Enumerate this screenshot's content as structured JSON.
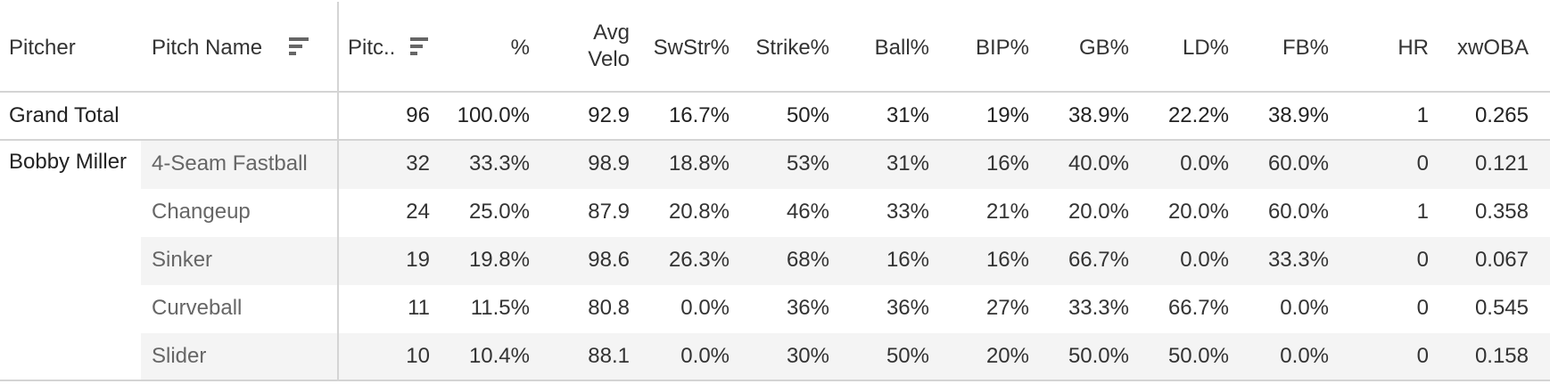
{
  "headers": {
    "pitcher": "Pitcher",
    "pitch_name": "Pitch Name",
    "pitches": "Pitc..",
    "pct": "%",
    "avg_velo_line1": "Avg",
    "avg_velo_line2": "Velo",
    "swstr": "SwStr%",
    "strike": "Strike%",
    "ball": "Ball%",
    "bip": "BIP%",
    "gb": "GB%",
    "ld": "LD%",
    "fb": "FB%",
    "hr": "HR",
    "xwoba": "xwOBA"
  },
  "total": {
    "label": "Grand Total",
    "values": [
      "96",
      "100.0%",
      "92.9",
      "16.7%",
      "50%",
      "31%",
      "19%",
      "38.9%",
      "22.2%",
      "38.9%",
      "1",
      "0.265"
    ]
  },
  "pitcher_name": "Bobby Miller",
  "rows": [
    {
      "pitch": "4-Seam Fastball",
      "values": [
        "32",
        "33.3%",
        "98.9",
        "18.8%",
        "53%",
        "31%",
        "16%",
        "40.0%",
        "0.0%",
        "60.0%",
        "0",
        "0.121"
      ]
    },
    {
      "pitch": "Changeup",
      "values": [
        "24",
        "25.0%",
        "87.9",
        "20.8%",
        "46%",
        "33%",
        "21%",
        "20.0%",
        "20.0%",
        "60.0%",
        "1",
        "0.358"
      ]
    },
    {
      "pitch": "Sinker",
      "values": [
        "19",
        "19.8%",
        "98.6",
        "26.3%",
        "68%",
        "16%",
        "16%",
        "66.7%",
        "0.0%",
        "33.3%",
        "0",
        "0.067"
      ]
    },
    {
      "pitch": "Curveball",
      "values": [
        "11",
        "11.5%",
        "80.8",
        "0.0%",
        "36%",
        "36%",
        "27%",
        "33.3%",
        "66.7%",
        "0.0%",
        "0",
        "0.545"
      ]
    },
    {
      "pitch": "Slider",
      "values": [
        "10",
        "10.4%",
        "88.1",
        "0.0%",
        "30%",
        "50%",
        "20%",
        "50.0%",
        "50.0%",
        "0.0%",
        "0",
        "0.158"
      ]
    }
  ],
  "icons": {
    "sort": "sort-descending-icon"
  },
  "colors": {
    "border": "#d4d4d4",
    "band": "#f4f4f4",
    "text": "#333333",
    "muted": "#666666"
  }
}
